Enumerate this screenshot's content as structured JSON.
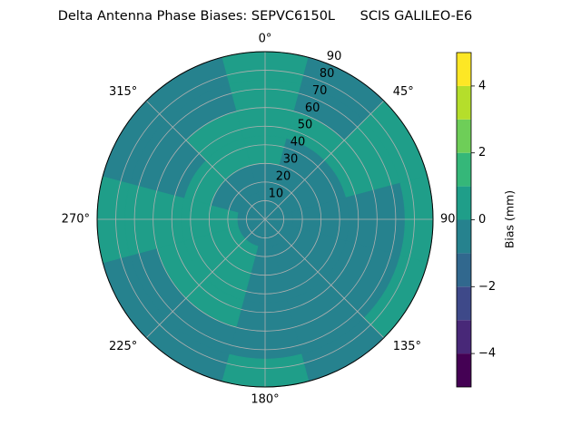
{
  "chart_data": {
    "type": "polar-contour",
    "title": "Delta Antenna Phase Biases: SEPVC6150L      SCIS GALILEO-E6",
    "colorbar_label": "Bias (mm)",
    "theta_ticks": [
      {
        "value": 0,
        "label": "0°"
      },
      {
        "value": 45,
        "label": "45°"
      },
      {
        "value": 90,
        "label": "90"
      },
      {
        "value": 135,
        "label": "135°"
      },
      {
        "value": 180,
        "label": "180°"
      },
      {
        "value": 225,
        "label": "225°"
      },
      {
        "value": 270,
        "label": "270°"
      },
      {
        "value": 315,
        "label": "315°"
      }
    ],
    "rlim": [
      0,
      90
    ],
    "rticks": [
      10,
      20,
      30,
      40,
      50,
      60,
      70,
      80,
      90
    ],
    "grid": true,
    "theta_edges": [
      -15,
      15,
      45,
      75,
      105,
      135,
      165,
      195,
      225,
      255,
      285,
      315,
      345
    ],
    "r_edges": [
      0,
      15,
      30,
      45,
      60,
      75,
      90
    ],
    "z": [
      [
        -0.5,
        -0.5,
        0.5,
        0.5,
        0.5,
        0.5
      ],
      [
        -0.5,
        -0.5,
        -0.5,
        0.5,
        -0.5,
        -0.5
      ],
      [
        -0.5,
        -0.5,
        -0.5,
        0.5,
        0.5,
        0.5
      ],
      [
        -0.5,
        -0.5,
        -0.5,
        -0.5,
        -0.5,
        0.5
      ],
      [
        -0.5,
        -0.5,
        -0.5,
        -0.5,
        -0.5,
        0.5
      ],
      [
        -0.5,
        -0.5,
        -0.5,
        -0.5,
        -0.5,
        -0.5
      ],
      [
        -0.5,
        -0.5,
        -0.5,
        -0.5,
        -0.5,
        0.5
      ],
      [
        -0.5,
        0.5,
        0.5,
        0.5,
        -0.5,
        -0.5
      ],
      [
        -0.5,
        0.5,
        0.5,
        0.5,
        -0.5,
        -0.5
      ],
      [
        -0.5,
        0.5,
        0.5,
        0.5,
        0.5,
        0.5
      ],
      [
        -0.5,
        -0.5,
        0.5,
        -0.5,
        -0.5,
        -0.5
      ],
      [
        -0.5,
        -0.5,
        0.5,
        0.5,
        -0.5,
        -0.5
      ]
    ],
    "clim": [
      -5,
      5
    ],
    "levels": [
      -5,
      -4,
      -3,
      -2,
      -1,
      0,
      1,
      2,
      3,
      4,
      5
    ],
    "colors": [
      "#440154",
      "#482878",
      "#3e4989",
      "#31688e",
      "#26828e",
      "#1f9e89",
      "#35b779",
      "#6ece58",
      "#b5de2b",
      "#fde725"
    ],
    "cticks": [
      {
        "value": -4,
        "label": "−4"
      },
      {
        "value": -2,
        "label": "−2"
      },
      {
        "value": 0,
        "label": "0"
      },
      {
        "value": 2,
        "label": "2"
      },
      {
        "value": 4,
        "label": "4"
      }
    ]
  }
}
